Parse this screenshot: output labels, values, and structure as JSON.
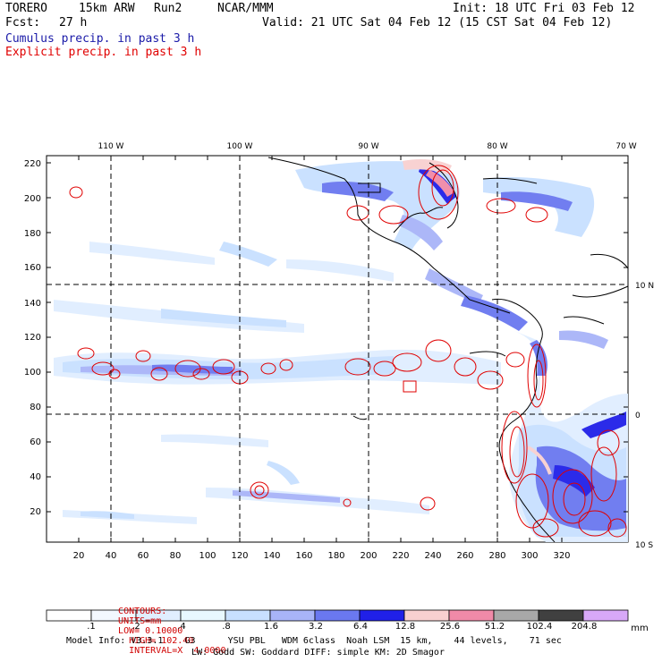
{
  "header": {
    "model": "TORERO",
    "resolution": "15km ARW",
    "run": "Run2",
    "org": "NCAR/MMM",
    "init": "Init: 18 UTC Fri 03 Feb 12",
    "fcst_label": "Fcst:",
    "fcst_value": "27 h",
    "valid": "Valid: 21 UTC Sat 04 Feb 12 (15 CST Sat 04 Feb 12)",
    "field1": "Cumulus precip. in past 3 h",
    "field2": "Explicit precip. in past 3 h"
  },
  "map": {
    "lon_labels": [
      "110 W",
      "100 W",
      "90 W",
      "80 W",
      "70 W"
    ],
    "lat_labels": [
      "10 N",
      "0",
      "10 S"
    ],
    "y_ticks": [
      "220",
      "200",
      "180",
      "160",
      "140",
      "120",
      "100",
      "80",
      "60",
      "40",
      "20"
    ],
    "x_ticks": [
      "20",
      "40",
      "60",
      "80",
      "100",
      "120",
      "140",
      "160",
      "180",
      "200",
      "220",
      "240",
      "260",
      "280",
      "300",
      "320"
    ]
  },
  "contours_line": {
    "label": "CONTOURS:",
    "units": "UNITS=mm",
    "low": "LOW= 0.10000",
    "high": "HIGH= 102.40",
    "interval": "INTERVAL=X  4.0000"
  },
  "colorbar": {
    "unit": "mm",
    "labels": [
      ".1",
      ".2",
      ".4",
      ".8",
      "1.6",
      "3.2",
      "6.4",
      "12.8",
      "25.6",
      "51.2",
      "102.4",
      "204.8"
    ],
    "colors": [
      "#ffffff",
      "#f3f8ff",
      "#e0eeff",
      "#e8f8ff",
      "#c8e0ff",
      "#a8b4f8",
      "#6a78f0",
      "#2020e8",
      "#f8d0d0",
      "#f08aa8",
      "#a8a8a8",
      "#404040",
      "#d8a8f8"
    ]
  },
  "model_info": {
    "line1": "Model Info: V3.3.1    G3      YSU PBL   WDM 6class  Noah LSM  15 km,    44 levels,    71 sec",
    "line2": "LW: Godd SW: Goddard DIFF: simple KM: 2D Smagor"
  }
}
